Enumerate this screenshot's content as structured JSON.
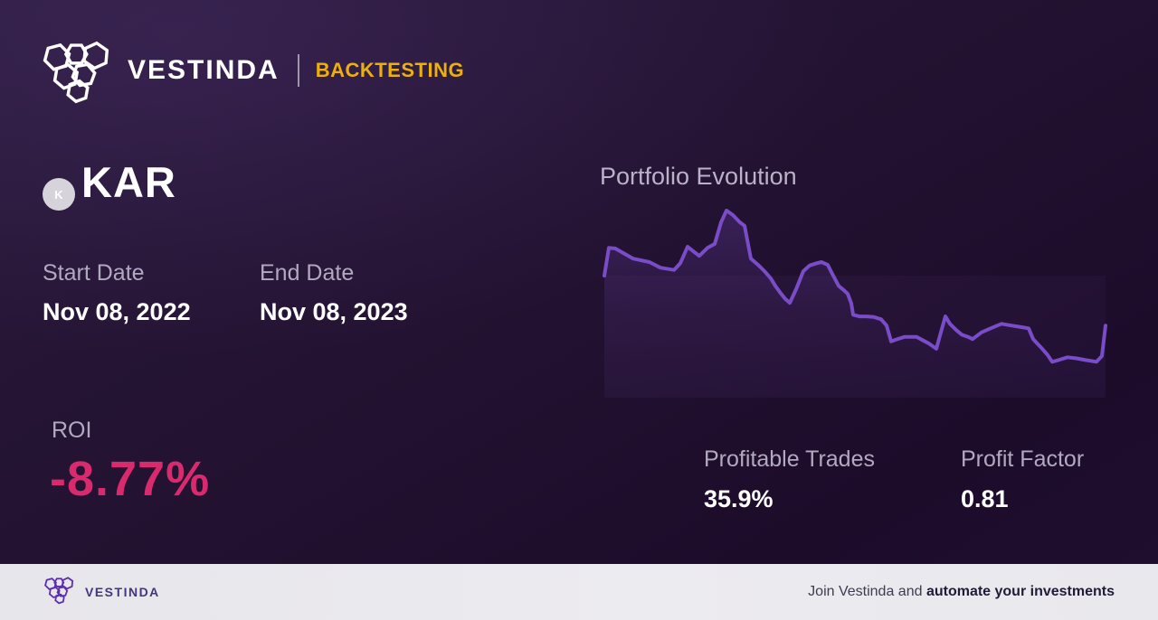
{
  "header": {
    "brand": "VESTINDA",
    "badge": "BACKTESTING"
  },
  "asset": {
    "symbol": "KAR",
    "icon_letter": "K"
  },
  "dates": {
    "start_label": "Start Date",
    "start_value": "Nov 08, 2022",
    "end_label": "End Date",
    "end_value": "Nov 08, 2023"
  },
  "roi": {
    "label": "ROI",
    "value": "-8.77%"
  },
  "stats": [
    {
      "label": "Profitable Trades",
      "value": "35.9%"
    },
    {
      "label": "Profit Factor",
      "value": "0.81"
    }
  ],
  "footer": {
    "brand": "VESTINDA",
    "promo_regular": "Join Vestinda and ",
    "promo_bold": "automate your investments"
  },
  "colors": {
    "accent_yellow": "#ecb00d",
    "roi_negative": "#d92a6e",
    "chart_line": "#7a4cc8",
    "brand_purple_footer": "#5b2fae",
    "label_lavender": "#b1a9c0",
    "footer_bg": "#e9e8ec"
  },
  "chart_data": {
    "type": "line",
    "title": "Portfolio Evolution",
    "xlabel": "",
    "ylabel": "",
    "x_range": [
      "Nov 08, 2022",
      "Nov 08, 2023"
    ],
    "grid": false,
    "legend": false,
    "baseline_value": 100,
    "final_value": 91.23,
    "roi_percent": -8.77,
    "points": [
      [
        3,
        100.0
      ],
      [
        8,
        104.9
      ],
      [
        15,
        104.8
      ],
      [
        35,
        103.0
      ],
      [
        53,
        102.4
      ],
      [
        65,
        101.4
      ],
      [
        80,
        101.0
      ],
      [
        87,
        102.2
      ],
      [
        95,
        105.1
      ],
      [
        103,
        104.1
      ],
      [
        108,
        103.5
      ],
      [
        117,
        104.9
      ],
      [
        125,
        105.6
      ],
      [
        132,
        109.4
      ],
      [
        138,
        111.5
      ],
      [
        145,
        110.7
      ],
      [
        153,
        109.4
      ],
      [
        158,
        108.8
      ],
      [
        165,
        103.0
      ],
      [
        173,
        101.9
      ],
      [
        180,
        100.8
      ],
      [
        187,
        99.5
      ],
      [
        192,
        98.2
      ],
      [
        197,
        97.1
      ],
      [
        203,
        95.9
      ],
      [
        208,
        95.2
      ],
      [
        215,
        97.6
      ],
      [
        223,
        100.8
      ],
      [
        230,
        101.8
      ],
      [
        238,
        102.2
      ],
      [
        243,
        102.4
      ],
      [
        250,
        101.9
      ],
      [
        255,
        100.3
      ],
      [
        262,
        98.2
      ],
      [
        268,
        97.4
      ],
      [
        272,
        96.8
      ],
      [
        276,
        95.1
      ],
      [
        278,
        93.1
      ],
      [
        285,
        92.8
      ],
      [
        293,
        92.8
      ],
      [
        301,
        92.7
      ],
      [
        309,
        92.3
      ],
      [
        315,
        91.2
      ],
      [
        320,
        88.4
      ],
      [
        325,
        88.7
      ],
      [
        335,
        89.2
      ],
      [
        348,
        89.2
      ],
      [
        362,
        88.0
      ],
      [
        370,
        87.1
      ],
      [
        375,
        90.0
      ],
      [
        380,
        92.8
      ],
      [
        385,
        91.5
      ],
      [
        392,
        90.4
      ],
      [
        398,
        89.6
      ],
      [
        405,
        89.2
      ],
      [
        410,
        88.8
      ],
      [
        420,
        90.0
      ],
      [
        430,
        90.7
      ],
      [
        442,
        91.5
      ],
      [
        453,
        91.2
      ],
      [
        465,
        90.9
      ],
      [
        472,
        90.7
      ],
      [
        477,
        88.8
      ],
      [
        487,
        87.1
      ],
      [
        493,
        86.0
      ],
      [
        498,
        84.8
      ],
      [
        505,
        85.1
      ],
      [
        515,
        85.6
      ],
      [
        525,
        85.4
      ],
      [
        535,
        85.1
      ],
      [
        547,
        84.8
      ],
      [
        553,
        85.8
      ],
      [
        557,
        91.2
      ]
    ]
  }
}
